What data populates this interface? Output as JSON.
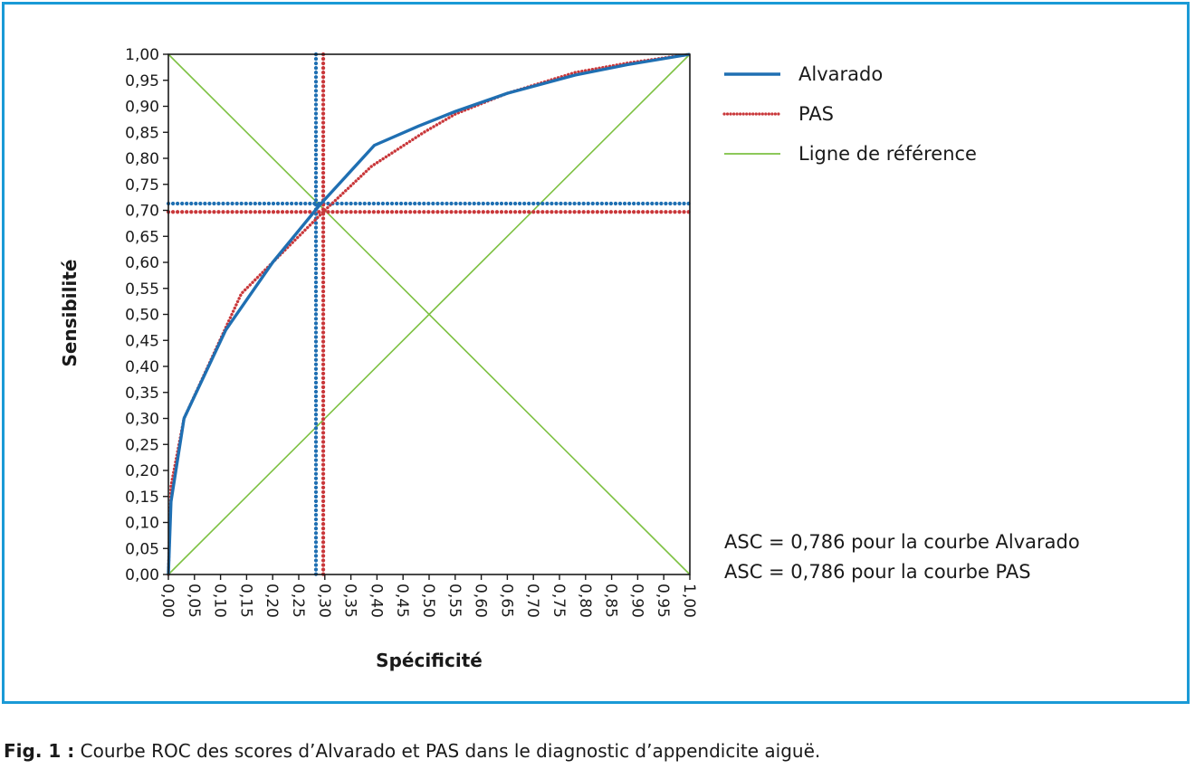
{
  "chart_data": {
    "type": "line",
    "title": "",
    "xlabel": "Spécificité",
    "ylabel": "Sensibilité",
    "xlim": [
      0,
      1
    ],
    "ylim": [
      0,
      1
    ],
    "x_ticks": [
      "0,00",
      "0,05",
      "0,10",
      "0,15",
      "0,20",
      "0,25",
      "0,30",
      "0,35",
      "0,40",
      "0,45",
      "0,50",
      "0,55",
      "0,60",
      "0,65",
      "0,70",
      "0,75",
      "0,80",
      "0,85",
      "0,90",
      "0,95",
      "1,00"
    ],
    "y_ticks": [
      "0,00",
      "0,05",
      "0,10",
      "0,15",
      "0,20",
      "0,25",
      "0,30",
      "0,35",
      "0,40",
      "0,45",
      "0,50",
      "0,55",
      "0,60",
      "0,65",
      "0,70",
      "0,75",
      "0,80",
      "0,85",
      "0,90",
      "0,95",
      "1,00"
    ],
    "grid": false,
    "legend_position": "top-right",
    "series": [
      {
        "name": "Alvarado",
        "color": "#1f6fb2",
        "style": "solid",
        "x": [
          0.0,
          0.005,
          0.03,
          0.11,
          0.2,
          0.29,
          0.395,
          0.48,
          0.55,
          0.65,
          0.78,
          0.88,
          1.0
        ],
        "y": [
          0.0,
          0.14,
          0.3,
          0.47,
          0.6,
          0.71,
          0.825,
          0.862,
          0.89,
          0.925,
          0.96,
          0.98,
          1.0
        ]
      },
      {
        "name": "PAS",
        "color": "#c9373a",
        "style": "dotted",
        "x": [
          0.0,
          0.005,
          0.03,
          0.14,
          0.2,
          0.3,
          0.39,
          0.49,
          0.55,
          0.65,
          0.78,
          0.88,
          1.0
        ],
        "y": [
          0.0,
          0.17,
          0.3,
          0.54,
          0.6,
          0.7,
          0.785,
          0.85,
          0.885,
          0.925,
          0.965,
          0.983,
          1.0
        ]
      },
      {
        "name": "Ligne de référence",
        "color": "#7dc142",
        "style": "solid",
        "x": [
          0.0,
          1.0
        ],
        "y": [
          0.0,
          1.0
        ]
      }
    ],
    "extra_lines": {
      "descending_diagonal": {
        "color": "#7dc142",
        "x": [
          0.0,
          1.0
        ],
        "y": [
          1.0,
          0.0
        ]
      },
      "cutoffs": [
        {
          "series": "Alvarado",
          "color": "#1f6fb2",
          "x": 0.283,
          "y": 0.713
        },
        {
          "series": "PAS",
          "color": "#c9373a",
          "x": 0.297,
          "y": 0.697
        }
      ]
    },
    "annotations": [
      "ASC = 0,786 pour la courbe Alvarado",
      "ASC = 0,786 pour la courbe PAS"
    ]
  },
  "caption": {
    "label": "Fig. 1 :",
    "text": " Courbe ROC des scores d’Alvarado et PAS dans le diagnostic d’appendicite aiguë."
  }
}
